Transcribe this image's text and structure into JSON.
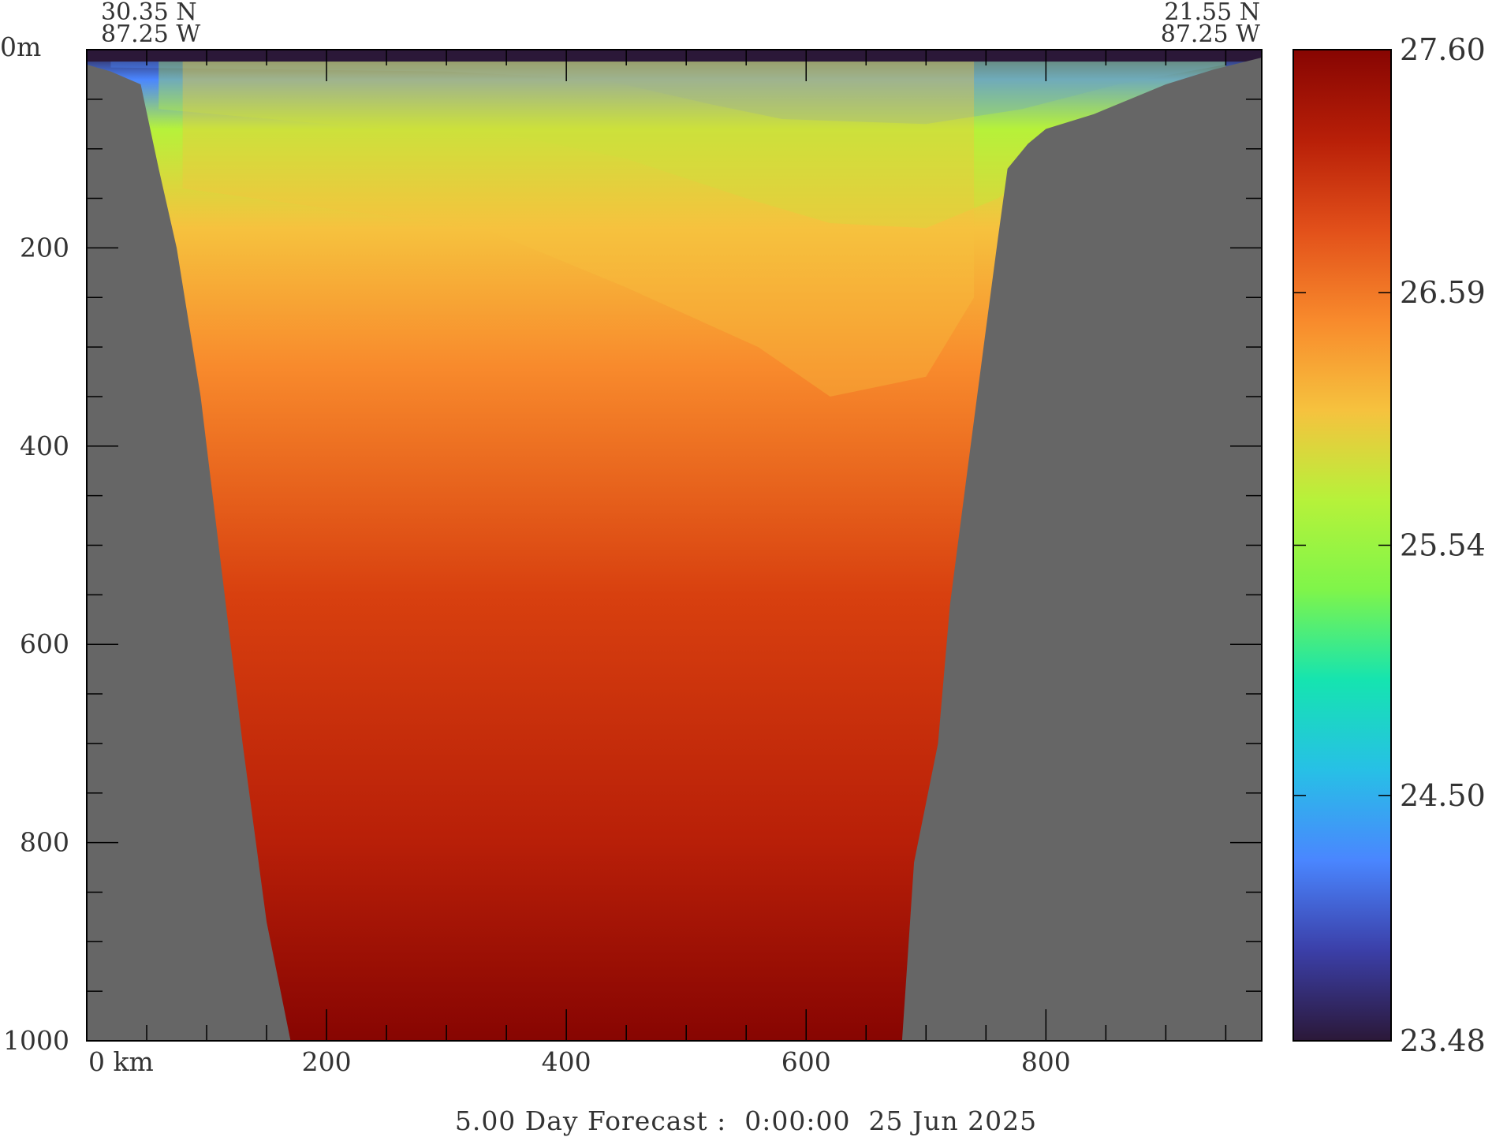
{
  "chart_data": {
    "type": "heatmap",
    "title": "",
    "xlabel": "",
    "ylabel": "",
    "x_unit": "km",
    "y_unit": "m",
    "xlim": [
      0,
      980
    ],
    "ylim": [
      0,
      1000
    ],
    "y_inverted": true,
    "x_ticks": [
      "0 km",
      "200",
      "400",
      "600",
      "800"
    ],
    "x_tick_values": [
      0,
      200,
      400,
      600,
      800
    ],
    "y_ticks": [
      "0m",
      "200",
      "400",
      "600",
      "800",
      "1000"
    ],
    "y_tick_values": [
      0,
      200,
      400,
      600,
      800,
      1000
    ],
    "start_point": {
      "lat": "30.35 N",
      "lon": "87.25 W"
    },
    "end_point": {
      "lat": "21.55 N",
      "lon": "87.25 W"
    },
    "footer": "5.00 Day Forecast :  0:00:00  25 Jun 2025",
    "colorbar": {
      "min": 23.48,
      "max": 27.6,
      "tick_labels": [
        "27.60",
        "26.59",
        "25.54",
        "24.50",
        "23.48"
      ],
      "tick_values": [
        27.6,
        26.59,
        25.54,
        24.5,
        23.48
      ],
      "colors": [
        "#2b1838",
        "#3b3fa8",
        "#4a86ff",
        "#27c0e6",
        "#15e4b0",
        "#7ff54a",
        "#b6f23a",
        "#f6c23e",
        "#f88a2c",
        "#e2501a",
        "#b81f08",
        "#870502"
      ]
    },
    "bathymetry_km_depth": [
      [
        0,
        15
      ],
      [
        20,
        22
      ],
      [
        45,
        35
      ],
      [
        60,
        120
      ],
      [
        75,
        200
      ],
      [
        95,
        350
      ],
      [
        110,
        500
      ],
      [
        130,
        700
      ],
      [
        150,
        880
      ],
      [
        170,
        1000
      ],
      [
        680,
        1000
      ],
      [
        690,
        820
      ],
      [
        710,
        700
      ],
      [
        720,
        560
      ],
      [
        735,
        420
      ],
      [
        748,
        300
      ],
      [
        760,
        190
      ],
      [
        768,
        120
      ],
      [
        785,
        95
      ],
      [
        800,
        80
      ],
      [
        840,
        65
      ],
      [
        870,
        50
      ],
      [
        900,
        35
      ],
      [
        940,
        20
      ],
      [
        980,
        8
      ]
    ],
    "isotherm_depths_m": [
      {
        "temp": 24.0,
        "depths": [
          [
            20,
            18
          ],
          [
            160,
            20
          ],
          [
            300,
            22
          ],
          [
            430,
            30
          ],
          [
            520,
            55
          ],
          [
            580,
            70
          ],
          [
            700,
            75
          ],
          [
            780,
            60
          ],
          [
            860,
            35
          ],
          [
            950,
            15
          ]
        ]
      },
      {
        "temp": 25.5,
        "depths": [
          [
            60,
            60
          ],
          [
            200,
            75
          ],
          [
            350,
            85
          ],
          [
            450,
            110
          ],
          [
            550,
            150
          ],
          [
            620,
            175
          ],
          [
            700,
            180
          ],
          [
            760,
            150
          ],
          [
            860,
            60
          ],
          [
            950,
            25
          ]
        ]
      },
      {
        "temp": 26.6,
        "depths": [
          [
            80,
            140
          ],
          [
            200,
            160
          ],
          [
            330,
            180
          ],
          [
            450,
            240
          ],
          [
            560,
            300
          ],
          [
            620,
            350
          ],
          [
            700,
            330
          ],
          [
            740,
            250
          ]
        ]
      }
    ]
  }
}
